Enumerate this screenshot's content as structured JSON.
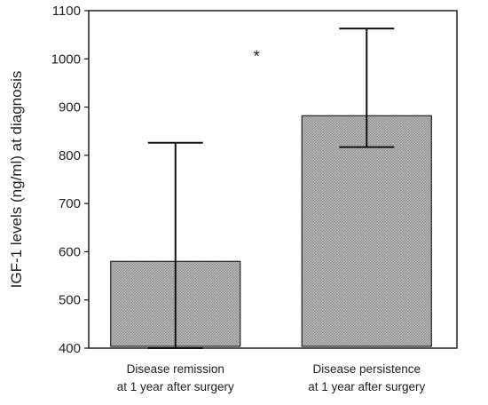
{
  "chart_data": {
    "type": "bar",
    "title": "",
    "xlabel": "",
    "ylabel": "IGF-1 levels (ng/ml) at diagnosis",
    "ylim": [
      400,
      1100
    ],
    "yticks": [
      400,
      500,
      600,
      700,
      800,
      900,
      1000,
      1100
    ],
    "grid": false,
    "categories": [
      [
        "Disease remission",
        "at 1 year after surgery"
      ],
      [
        "Disease persistence",
        "at 1 year after surgery"
      ]
    ],
    "values": [
      580,
      882
    ],
    "error_low": [
      400,
      817
    ],
    "error_high": [
      826,
      1063
    ],
    "bar_color": "#a9a9a9",
    "annotations": [
      {
        "text": "*",
        "x": 0.35,
        "y": 1005
      }
    ]
  }
}
